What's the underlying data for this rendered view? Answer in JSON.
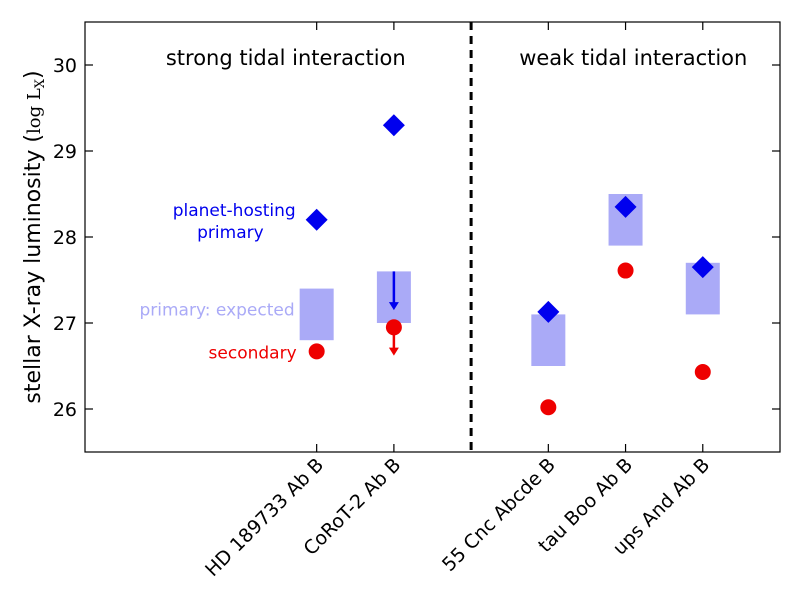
{
  "chart_data": {
    "type": "scatter",
    "ylabel_prefix": "stellar X-ray luminosity (",
    "ylabel_math": "log L",
    "ylabel_sub": "X",
    "ylabel_suffix": ")",
    "ylim": [
      25.5,
      30.5
    ],
    "yticks": [
      26,
      27,
      28,
      29,
      30
    ],
    "ytick_labels": [
      "26",
      "27",
      "28",
      "29",
      "30"
    ],
    "categories": [
      "HD 189733 Ab B",
      "CoRoT-2 Ab B",
      "55 Cnc Abcde B",
      "tau Boo Ab B",
      "ups And Ab B"
    ],
    "category_x": [
      3,
      4,
      6,
      7,
      8
    ],
    "xlim": [
      0,
      9
    ],
    "divider_x": 5,
    "region_labels": [
      "strong tidal interaction",
      "weak tidal interaction"
    ],
    "region_label_x": [
      2.6,
      7.1
    ],
    "series": [
      {
        "name": "planet-hosting primary",
        "marker": "diamond",
        "color": "#0000ee",
        "values": [
          28.2,
          29.3,
          27.13,
          28.35,
          27.65
        ]
      },
      {
        "name": "secondary",
        "marker": "circle",
        "color": "#ee0000",
        "values": [
          26.67,
          26.95,
          26.02,
          27.61,
          26.43
        ]
      }
    ],
    "expected_ranges": {
      "name": "primary: expected",
      "color": "#aaaaf7",
      "ranges": [
        [
          26.8,
          27.4
        ],
        [
          27.0,
          27.6
        ],
        [
          26.5,
          27.1
        ],
        [
          27.9,
          28.5
        ],
        [
          27.1,
          27.7
        ]
      ]
    },
    "upper_limits": [
      {
        "category": 1,
        "series": "primary",
        "from": 27.6,
        "to": 27.15
      },
      {
        "category": 1,
        "series": "secondary",
        "from": 26.95,
        "to": 26.62
      }
    ],
    "legend_text": {
      "primary_line1": "planet-hosting",
      "primary_line2": "primary",
      "expected": "primary: expected",
      "secondary": "secondary"
    },
    "colors": {
      "primary": "#0000ee",
      "secondary": "#ee0000",
      "expected": "#aaaaf7",
      "axis": "#000000"
    }
  }
}
